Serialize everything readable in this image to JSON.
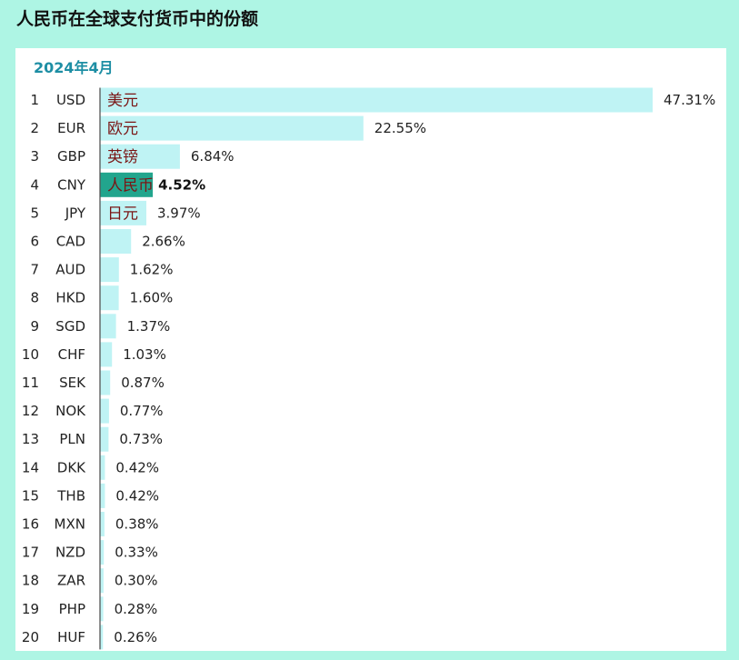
{
  "page": {
    "title": "人民币在全球支付货币中的份额"
  },
  "chart_data": {
    "type": "bar",
    "orientation": "horizontal",
    "subtitle": "2024年4月",
    "grid": false,
    "legend": "none",
    "xlim": [
      0,
      47.31
    ],
    "colors": {
      "bar": "#bff3f4",
      "highlight_bar": "#22a58d",
      "axis": "#555555",
      "chinese_label": "#7a1515"
    },
    "rows": [
      {
        "rank": "1",
        "code": "USD",
        "value": 47.31,
        "label": "47.31%",
        "chinese": "美元"
      },
      {
        "rank": "2",
        "code": "EUR",
        "value": 22.55,
        "label": "22.55%",
        "chinese": "欧元"
      },
      {
        "rank": "3",
        "code": "GBP",
        "value": 6.84,
        "label": "6.84%",
        "chinese": "英镑"
      },
      {
        "rank": "4",
        "code": "CNY",
        "value": 4.52,
        "label": "4.52%",
        "chinese": "人民币",
        "highlight": true
      },
      {
        "rank": "5",
        "code": "JPY",
        "value": 3.97,
        "label": "3.97%",
        "chinese": "日元"
      },
      {
        "rank": "6",
        "code": "CAD",
        "value": 2.66,
        "label": "2.66%"
      },
      {
        "rank": "7",
        "code": "AUD",
        "value": 1.62,
        "label": "1.62%"
      },
      {
        "rank": "8",
        "code": "HKD",
        "value": 1.6,
        "label": "1.60%"
      },
      {
        "rank": "9",
        "code": "SGD",
        "value": 1.37,
        "label": "1.37%"
      },
      {
        "rank": "10",
        "code": "CHF",
        "value": 1.03,
        "label": "1.03%"
      },
      {
        "rank": "11",
        "code": "SEK",
        "value": 0.87,
        "label": "0.87%"
      },
      {
        "rank": "12",
        "code": "NOK",
        "value": 0.77,
        "label": "0.77%"
      },
      {
        "rank": "13",
        "code": "PLN",
        "value": 0.73,
        "label": "0.73%"
      },
      {
        "rank": "14",
        "code": "DKK",
        "value": 0.42,
        "label": "0.42%"
      },
      {
        "rank": "15",
        "code": "THB",
        "value": 0.42,
        "label": "0.42%"
      },
      {
        "rank": "16",
        "code": "MXN",
        "value": 0.38,
        "label": "0.38%"
      },
      {
        "rank": "17",
        "code": "NZD",
        "value": 0.33,
        "label": "0.33%"
      },
      {
        "rank": "18",
        "code": "ZAR",
        "value": 0.3,
        "label": "0.30%"
      },
      {
        "rank": "19",
        "code": "PHP",
        "value": 0.28,
        "label": "0.28%"
      },
      {
        "rank": "20",
        "code": "HUF",
        "value": 0.26,
        "label": "0.26%"
      }
    ]
  }
}
